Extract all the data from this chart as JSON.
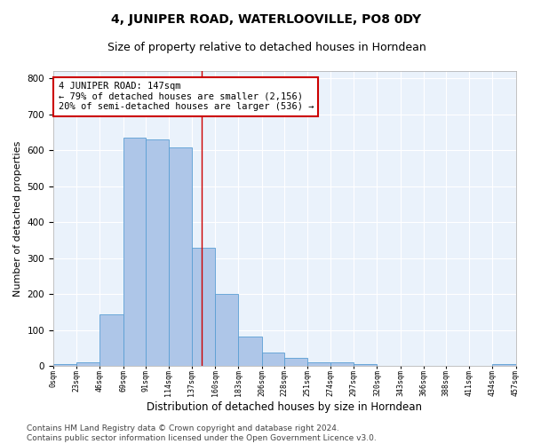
{
  "title": "4, JUNIPER ROAD, WATERLOOVILLE, PO8 0DY",
  "subtitle": "Size of property relative to detached houses in Horndean",
  "xlabel": "Distribution of detached houses by size in Horndean",
  "ylabel": "Number of detached properties",
  "bar_color": "#aec6e8",
  "bar_edge_color": "#5a9fd4",
  "background_color": "#eaf2fb",
  "grid_color": "#ffffff",
  "vline_x": 147,
  "annotation_text": "4 JUNIPER ROAD: 147sqm\n← 79% of detached houses are smaller (2,156)\n20% of semi-detached houses are larger (536) →",
  "annotation_box_color": "#ffffff",
  "annotation_border_color": "#cc0000",
  "bins": [
    0,
    23,
    46,
    69,
    91,
    114,
    137,
    160,
    183,
    206,
    228,
    251,
    274,
    297,
    320,
    343,
    366,
    388,
    411,
    434,
    457
  ],
  "counts": [
    5,
    10,
    145,
    635,
    630,
    607,
    330,
    200,
    82,
    38,
    22,
    10,
    10,
    5,
    0,
    0,
    0,
    0,
    0,
    5
  ],
  "ylim": [
    0,
    820
  ],
  "yticks": [
    0,
    100,
    200,
    300,
    400,
    500,
    600,
    700,
    800
  ],
  "footer_text": "Contains HM Land Registry data © Crown copyright and database right 2024.\nContains public sector information licensed under the Open Government Licence v3.0.",
  "title_fontsize": 10,
  "subtitle_fontsize": 9,
  "xlabel_fontsize": 8.5,
  "ylabel_fontsize": 8,
  "footer_fontsize": 6.5,
  "annotation_fontsize": 7.5
}
